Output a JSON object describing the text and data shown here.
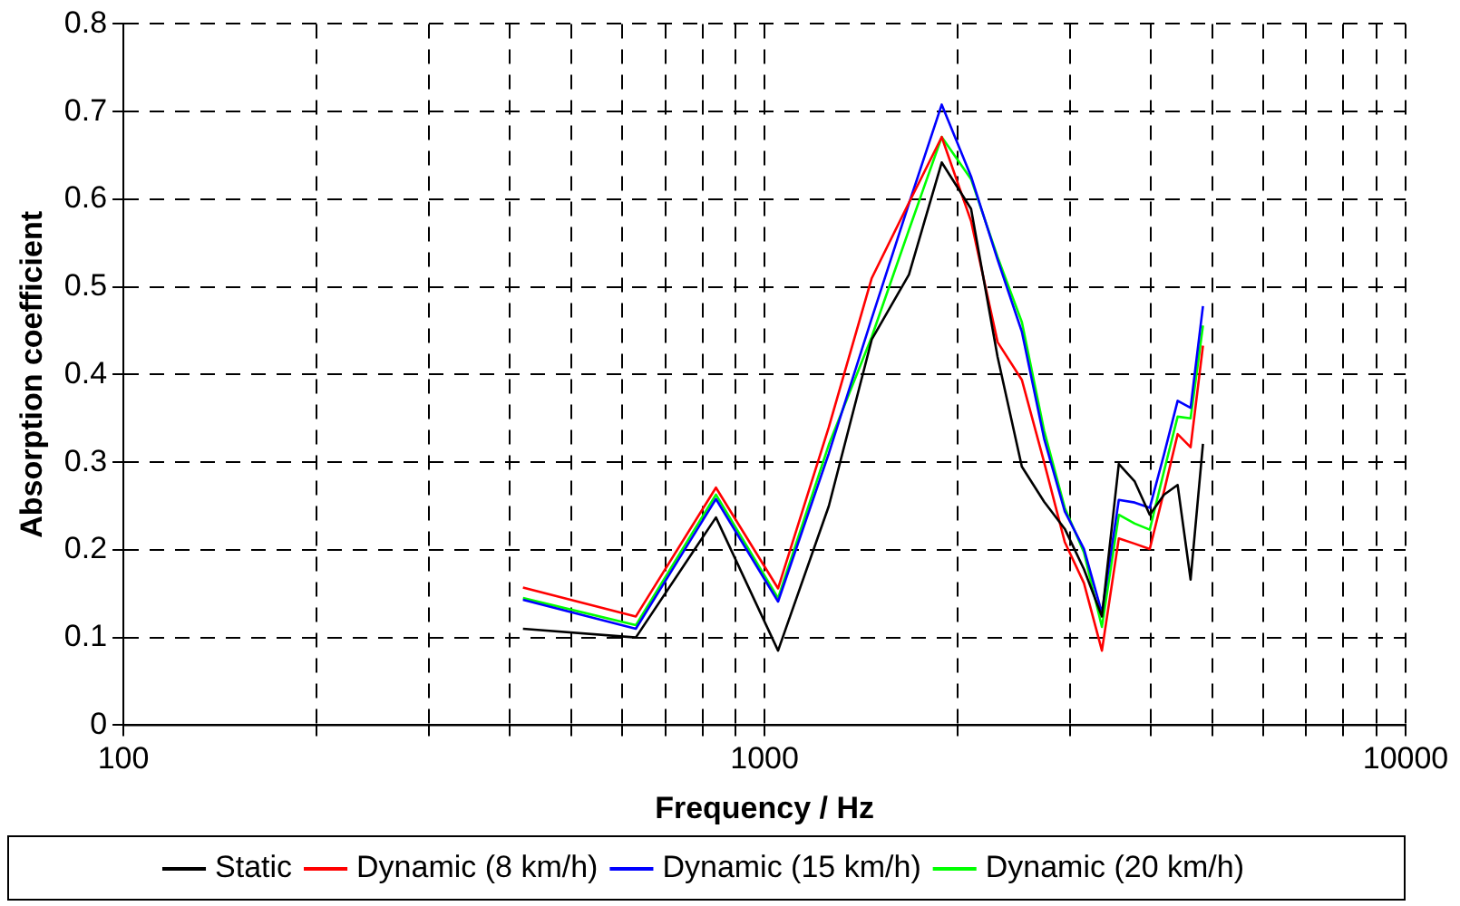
{
  "chart_data": {
    "type": "line",
    "xlabel": "Frequency / Hz",
    "ylabel": "Absorption coefficient",
    "log": "x",
    "x": [
      420,
      630,
      840,
      1050,
      1260,
      1470,
      1680,
      1890,
      2100,
      2310,
      2520,
      2730,
      2940,
      3150,
      3360,
      3570,
      3780,
      3990,
      4200,
      4410,
      4620,
      4830
    ],
    "series": [
      {
        "name": "Static",
        "color": "#000000",
        "values": [
          0.11,
          0.1,
          0.237,
          0.085,
          0.25,
          0.44,
          0.514,
          0.642,
          0.589,
          0.42,
          0.295,
          0.255,
          0.224,
          0.178,
          0.124,
          0.298,
          0.278,
          0.24,
          0.263,
          0.274,
          0.166,
          0.321
        ]
      },
      {
        "name": "Dynamic (8 km/h)",
        "color": "#ff0000",
        "values": [
          0.157,
          0.124,
          0.271,
          0.156,
          0.34,
          0.51,
          0.596,
          0.671,
          0.575,
          0.437,
          0.394,
          0.3,
          0.209,
          0.162,
          0.085,
          0.213,
          0.207,
          0.201,
          0.267,
          0.332,
          0.317,
          0.433
        ]
      },
      {
        "name": "Dynamic (15 km/h)",
        "color": "#0000ff",
        "values": [
          0.143,
          0.11,
          0.258,
          0.141,
          0.31,
          0.464,
          0.595,
          0.708,
          0.626,
          0.531,
          0.449,
          0.327,
          0.244,
          0.201,
          0.128,
          0.257,
          0.254,
          0.248,
          0.309,
          0.37,
          0.362,
          0.478
        ]
      },
      {
        "name": "Dynamic (20 km/h)",
        "color": "#00ff00",
        "values": [
          0.145,
          0.114,
          0.263,
          0.145,
          0.32,
          0.443,
          0.565,
          0.671,
          0.623,
          0.534,
          0.46,
          0.336,
          0.248,
          0.197,
          0.112,
          0.24,
          0.23,
          0.223,
          0.29,
          0.352,
          0.35,
          0.456
        ]
      }
    ],
    "xlim": [
      100,
      10000
    ],
    "xticks": [
      100,
      {
        "value": 200,
        "label": null
      },
      {
        "value": 300,
        "label": null
      },
      {
        "value": 400,
        "label": null
      },
      {
        "value": 500,
        "label": null
      },
      {
        "value": 600,
        "label": null
      },
      {
        "value": 700,
        "label": null
      },
      {
        "value": 800,
        "label": null
      },
      {
        "value": 900,
        "label": null
      },
      1000,
      {
        "value": 2000,
        "label": null
      },
      {
        "value": 3000,
        "label": null
      },
      {
        "value": 4000,
        "label": null
      },
      {
        "value": 5000,
        "label": null
      },
      {
        "value": 6000,
        "label": null
      },
      {
        "value": 7000,
        "label": null
      },
      {
        "value": 8000,
        "label": null
      },
      {
        "value": 9000,
        "label": null
      },
      10000
    ],
    "ylim": [
      0,
      0.8
    ],
    "yticks": [
      0,
      0.1,
      0.2,
      0.3,
      0.4,
      0.5,
      0.6,
      0.7,
      0.8
    ],
    "grid": true,
    "legend": "bottom",
    "marker": "none",
    "line_style": "solid"
  }
}
